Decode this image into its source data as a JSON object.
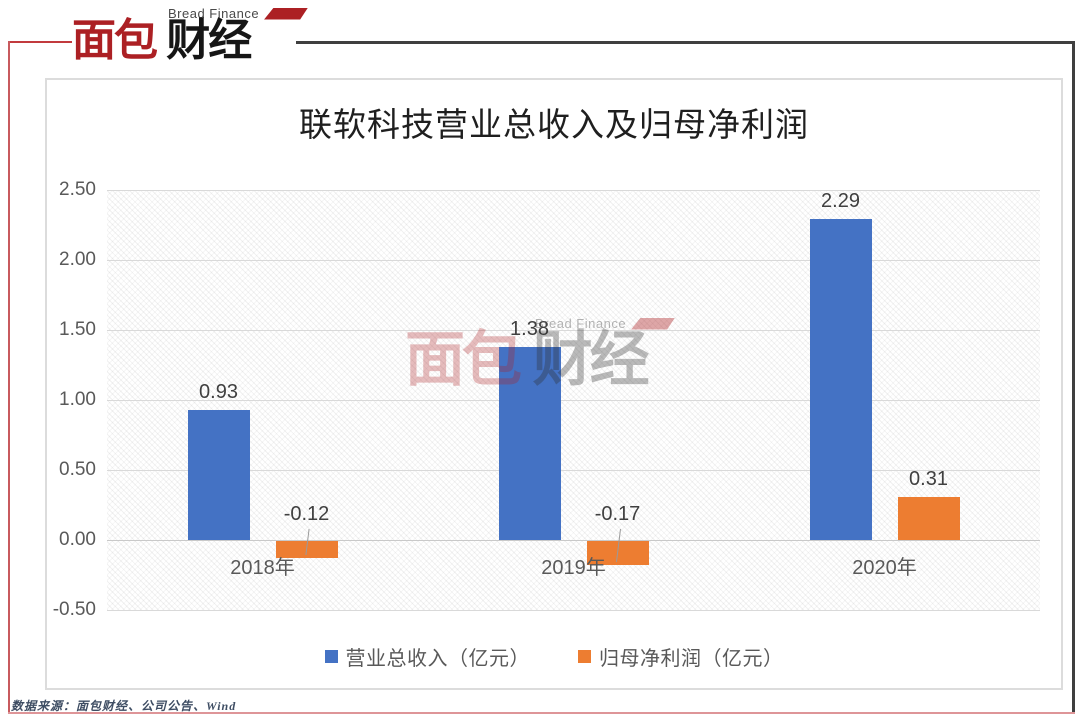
{
  "logo": {
    "brand_en": "Bread Finance",
    "brand_cn_red": "面包",
    "brand_cn_dark": "财经"
  },
  "watermark": {
    "brand_en": "Bread Finance",
    "brand_cn_red": "面包",
    "brand_cn_dark": "财经"
  },
  "chart_data": {
    "type": "bar",
    "title": "联软科技营业总收入及归母净利润",
    "categories": [
      "2018年",
      "2019年",
      "2020年"
    ],
    "series": [
      {
        "name": "营业总收入（亿元）",
        "color": "#4472C4",
        "values": [
          0.93,
          1.38,
          2.29
        ],
        "labels": [
          "0.93",
          "1.38",
          "2.29"
        ]
      },
      {
        "name": "归母净利润（亿元）",
        "color": "#ED7D31",
        "values": [
          -0.12,
          -0.17,
          0.31
        ],
        "labels": [
          "-0.12",
          "-0.17",
          "0.31"
        ]
      }
    ],
    "ylim": [
      -0.5,
      2.5
    ],
    "ytick_step": 0.5,
    "ytick_labels": [
      "2.50",
      "2.00",
      "1.50",
      "1.00",
      "0.50",
      "0.00",
      "-0.50"
    ],
    "grid": true,
    "legend_position": "bottom",
    "plot_background": "diagonal-hatch"
  },
  "source_note": "数据来源：面包财经、公司公告、Wind",
  "colors": {
    "series_blue": "#4472C4",
    "series_orange": "#ED7D31",
    "gridline": "#D9D9D9",
    "brand_red": "#AC2024",
    "frame_dark": "#3F3F3F",
    "frame_pink": "#DE9598"
  }
}
